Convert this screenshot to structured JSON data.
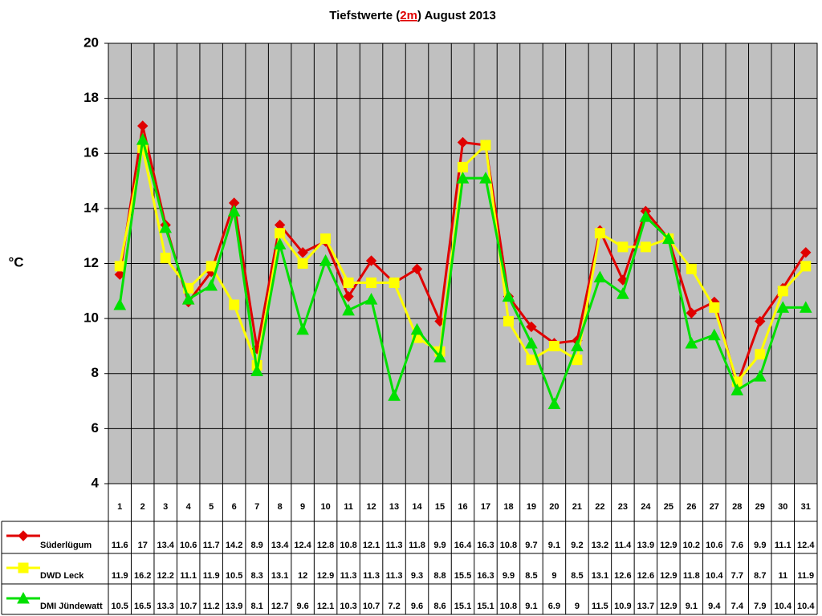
{
  "chart_data": {
    "type": "line",
    "title_parts": [
      "Tiefstwerte (",
      "2m",
      ") August 2013"
    ],
    "ylabel": "°C",
    "categories": [
      "1",
      "2",
      "3",
      "4",
      "5",
      "6",
      "7",
      "8",
      "9",
      "10",
      "11",
      "12",
      "13",
      "14",
      "15",
      "16",
      "17",
      "18",
      "19",
      "20",
      "21",
      "22",
      "23",
      "24",
      "25",
      "26",
      "27",
      "28",
      "29",
      "30",
      "31"
    ],
    "ylim": [
      4,
      20
    ],
    "yticks": [
      4,
      6,
      8,
      10,
      12,
      14,
      16,
      18,
      20
    ],
    "grid": true,
    "series": [
      {
        "name": "Süderlügum",
        "color": "#e00000",
        "marker": "diamond",
        "values": [
          11.6,
          17,
          13.4,
          10.6,
          11.7,
          14.2,
          8.9,
          13.4,
          12.4,
          12.8,
          10.8,
          12.1,
          11.3,
          11.8,
          9.9,
          16.4,
          16.3,
          10.8,
          9.7,
          9.1,
          9.2,
          13.2,
          11.4,
          13.9,
          12.9,
          10.2,
          10.6,
          7.6,
          9.9,
          11.1,
          12.4
        ]
      },
      {
        "name": "DWD Leck",
        "color": "#ffff00",
        "marker": "square",
        "values": [
          11.9,
          16.2,
          12.2,
          11.1,
          11.9,
          10.5,
          8.3,
          13.1,
          12,
          12.9,
          11.3,
          11.3,
          11.3,
          9.3,
          8.8,
          15.5,
          16.3,
          9.9,
          8.5,
          9,
          8.5,
          13.1,
          12.6,
          12.6,
          12.9,
          11.8,
          10.4,
          7.7,
          8.7,
          11,
          11.9
        ]
      },
      {
        "name": "DMI Jündewatt",
        "color": "#00e000",
        "marker": "triangle",
        "values": [
          10.5,
          16.5,
          13.3,
          10.7,
          11.2,
          13.9,
          8.1,
          12.7,
          9.6,
          12.1,
          10.3,
          10.7,
          7.2,
          9.6,
          8.6,
          15.1,
          15.1,
          10.8,
          9.1,
          6.9,
          9,
          11.5,
          10.9,
          13.7,
          12.9,
          9.1,
          9.4,
          7.4,
          7.9,
          10.4,
          10.4
        ]
      }
    ]
  }
}
